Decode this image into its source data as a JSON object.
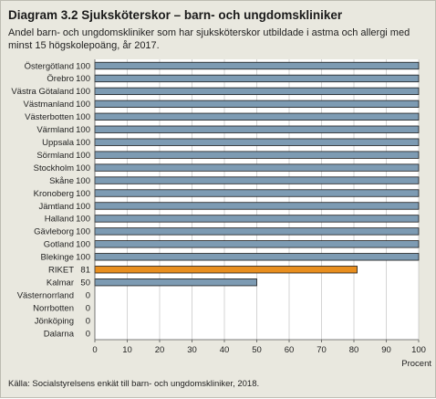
{
  "title": "Diagram 3.2 Sjuksköterskor – barn- och ungdomskliniker",
  "subtitle": "Andel barn- och ungdomskliniker som har sjuksköterskor utbildade i astma och allergi med minst 15 högskolepoäng, år 2017.",
  "source": "Källa: Socialstyrelsens enkät till barn- och ungdomskliniker, 2018.",
  "colors": {
    "bar": "#7d9bb3",
    "highlight": "#e88e1e",
    "background": "#e9e8df",
    "plot": "#ffffff"
  },
  "chart_data": {
    "type": "bar",
    "orientation": "horizontal",
    "categories": [
      "Östergötland",
      "Örebro",
      "Västra Götaland",
      "Västmanland",
      "Västerbotten",
      "Värmland",
      "Uppsala",
      "Sörmland",
      "Stockholm",
      "Skåne",
      "Kronoberg",
      "Jämtland",
      "Halland",
      "Gävleborg",
      "Gotland",
      "Blekinge",
      "RIKET",
      "Kalmar",
      "Västernorrland",
      "Norrbotten",
      "Jönköping",
      "Dalarna"
    ],
    "values": [
      100,
      100,
      100,
      100,
      100,
      100,
      100,
      100,
      100,
      100,
      100,
      100,
      100,
      100,
      100,
      100,
      81,
      50,
      0,
      0,
      0,
      0
    ],
    "value_labels": [
      "100",
      "100",
      "100",
      "100",
      "100",
      "100",
      "100",
      "100",
      "100",
      "100",
      "100",
      "100",
      "100",
      "100",
      "100",
      "100",
      "81",
      "50",
      "0",
      "0",
      "0",
      "0"
    ],
    "highlight_category": "RIKET",
    "xlabel": "Procent",
    "xlim": [
      0,
      100
    ],
    "xticks": [
      0,
      10,
      20,
      30,
      40,
      50,
      60,
      70,
      80,
      90,
      100
    ],
    "grid": "vertical"
  }
}
